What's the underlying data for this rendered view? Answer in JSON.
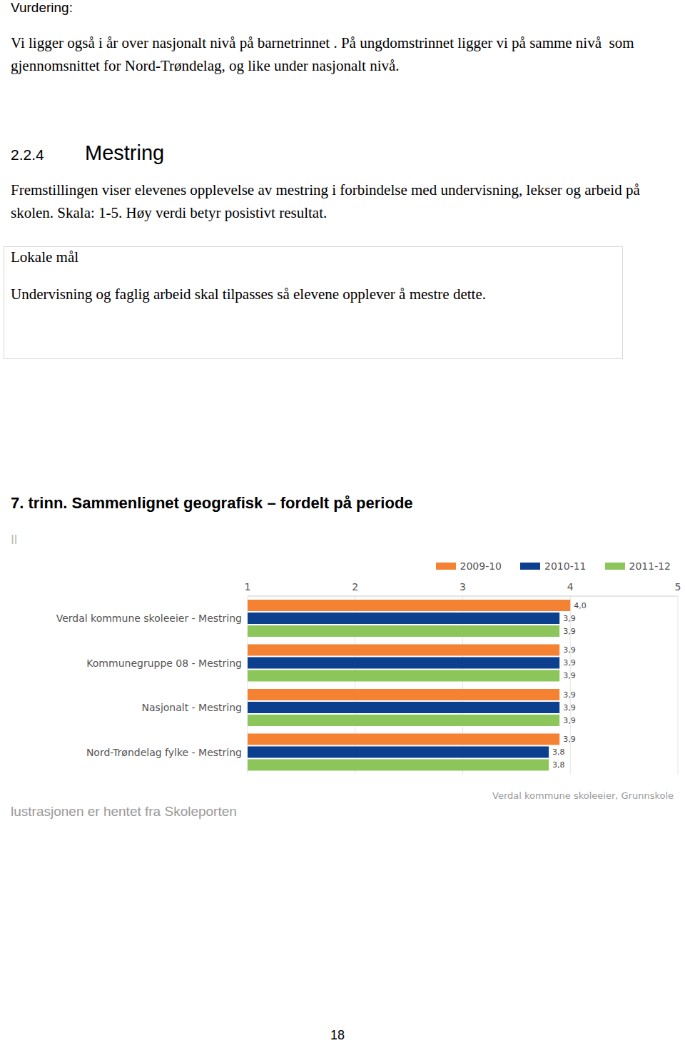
{
  "vurdering": {
    "label": "Vurdering:",
    "text": "Vi ligger også i år over nasjonalt nivå på barnetrinnet . På ungdomstrinnet ligger vi på samme nivå  som gjennomsnittet for Nord-Trøndelag, og like under nasjonalt nivå."
  },
  "section": {
    "number": "2.2.4",
    "title": "Mestring",
    "intro": "Fremstillingen viser elevenes opplevelse av mestring i forbindelse med undervisning, lekser og arbeid på skolen. Skala: 1-5. Høy verdi betyr posistivt resultat."
  },
  "box": {
    "title": "Lokale mål",
    "text": "Undervisning og faglig arbeid skal tilpasses så elevene opplever å mestre dette."
  },
  "chart_heading": "7. trinn. Sammenlignet geografisk – fordelt på periode",
  "chart_marker": "Il",
  "chart_data": {
    "type": "bar",
    "orientation": "horizontal",
    "categories": [
      "Verdal kommune skoleeier - Mestring",
      "Kommunegruppe 08 - Mestring",
      "Nasjonalt - Mestring",
      "Nord-Trøndelag fylke - Mestring"
    ],
    "series": [
      {
        "name": "2009-10",
        "color": "#f58233",
        "values": [
          4.0,
          3.9,
          3.9,
          3.9
        ],
        "value_labels": [
          "4,0",
          "3,9",
          "3,9",
          "3,9"
        ]
      },
      {
        "name": "2010-11",
        "color": "#0d3f8f",
        "values": [
          3.9,
          3.9,
          3.9,
          3.8
        ],
        "value_labels": [
          "3,9",
          "3,9",
          "3,9",
          "3,8"
        ]
      },
      {
        "name": "2011-12",
        "color": "#8cc65a",
        "values": [
          3.9,
          3.9,
          3.9,
          3.8
        ],
        "value_labels": [
          "3,9",
          "3,9",
          "3,9",
          "3,8"
        ]
      }
    ],
    "xlim": [
      1,
      5
    ],
    "xticks": [
      1,
      2,
      3,
      4,
      5
    ],
    "grid": true,
    "legend": "top-right",
    "data_labels": true,
    "annotation": "Verdal kommune skoleeier, Grunnskole"
  },
  "source_note": "lustrasjonen er hentet fra Skoleporten",
  "page_number": "18"
}
